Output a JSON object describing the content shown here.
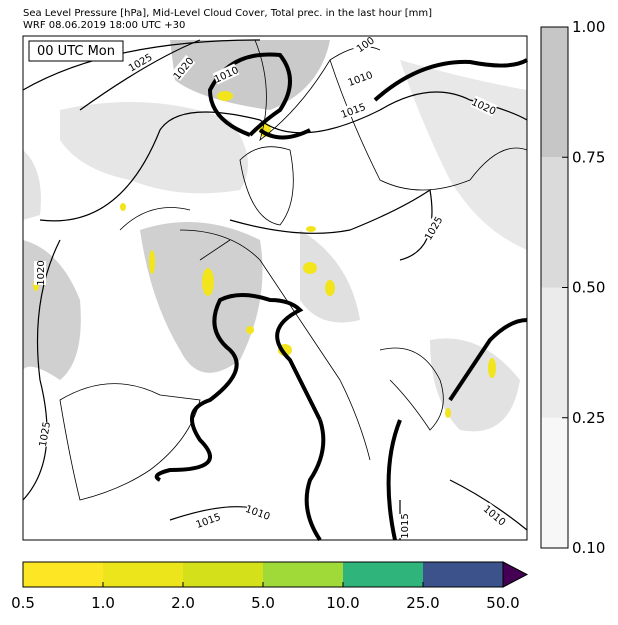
{
  "header": {
    "title": "Sea Level Pressure [hPa], Mid-Level Cloud Cover, Total prec. in the last hour [mm]",
    "subtitle": "WRF 08.06.2019 18:00 UTC +30"
  },
  "map": {
    "time_label": "00 UTC Mon",
    "isobar_labels": [
      "1025",
      "1020",
      "1010",
      "100",
      "1010",
      "1015",
      "1020",
      "1025",
      "1020",
      "1025",
      "1015",
      "1010",
      "1015",
      "1010"
    ]
  },
  "cloud_colorbar": {
    "ticks": [
      "0.10",
      "0.25",
      "0.50",
      "0.75",
      "1.00"
    ],
    "colors": [
      "#f7f7f7",
      "#ebebeb",
      "#dadada",
      "#c6c6c6"
    ]
  },
  "precip_colorbar": {
    "ticks": [
      "0.5",
      "1.0",
      "2.0",
      "5.0",
      "10.0",
      "25.0",
      "50.0"
    ],
    "colors": [
      "#fde725",
      "#ece51b",
      "#d4e11a",
      "#a0da39",
      "#2fb47c",
      "#3b528b",
      "#440154"
    ]
  }
}
